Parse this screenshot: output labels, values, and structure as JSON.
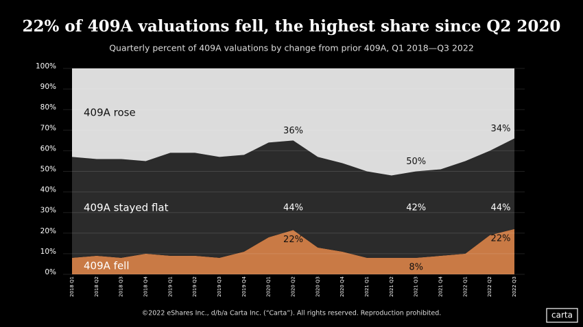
{
  "chart_data": {
    "type": "stacked_area",
    "title": "22% of 409A valuations fell, the highest share since Q2 2020",
    "subtitle": "Quarterly percent of 409A valuations by change from prior 409A, Q1 2018—Q3 2022",
    "footer": "©2022 eShares Inc., d/b/a Carta Inc. (“Carta”). All rights reserved. Reproduction prohibited.",
    "logo": "carta",
    "categories": [
      "2018 Q1",
      "2018 Q2",
      "2018 Q3",
      "2018 Q4",
      "2019 Q1",
      "2019 Q2",
      "2019 Q3",
      "2019 Q4",
      "2020 Q1",
      "2020 Q2",
      "2020 Q3",
      "2020 Q4",
      "2021 Q1",
      "2021 Q2",
      "2021 Q3",
      "2021 Q4",
      "2022 Q1",
      "2022 Q2",
      "2022 Q3"
    ],
    "series": [
      {
        "name": "409A fell",
        "color": "#c97a45",
        "values": [
          8,
          9,
          8,
          10,
          9,
          9,
          8,
          11,
          18,
          21.5,
          13,
          11,
          8,
          8,
          8,
          9,
          10,
          19,
          22
        ],
        "value_labels": [
          null,
          null,
          null,
          null,
          null,
          null,
          null,
          null,
          null,
          "22%",
          null,
          null,
          null,
          null,
          "8%",
          null,
          null,
          null,
          "22%"
        ]
      },
      {
        "name": "409A stayed flat",
        "color": "#2b2b2b",
        "values": [
          49,
          47,
          48,
          45,
          50,
          50,
          49,
          47,
          46,
          43.5,
          44,
          43,
          42,
          40,
          42,
          42,
          45,
          41,
          44
        ],
        "value_labels": [
          null,
          null,
          null,
          null,
          null,
          null,
          null,
          null,
          null,
          "44%",
          null,
          null,
          null,
          null,
          "42%",
          null,
          null,
          null,
          "44%"
        ]
      },
      {
        "name": "409A rose",
        "color": "#dcdcdc",
        "values": [
          43,
          44,
          44,
          45,
          41,
          41,
          43,
          42,
          36,
          35.5,
          43,
          46,
          50,
          52,
          50,
          49,
          45,
          40,
          34
        ],
        "value_labels": [
          null,
          null,
          null,
          null,
          null,
          null,
          null,
          null,
          null,
          "36%",
          null,
          null,
          null,
          null,
          "50%",
          null,
          null,
          null,
          "34%"
        ]
      }
    ],
    "ylim": [
      0,
      100
    ],
    "yticks": [
      {
        "value": 0,
        "label": "0%"
      },
      {
        "value": 10,
        "label": "10%"
      },
      {
        "value": 20,
        "label": "20%"
      },
      {
        "value": 30,
        "label": "30%"
      },
      {
        "value": 40,
        "label": "40%"
      },
      {
        "value": 50,
        "label": "50%"
      },
      {
        "value": 60,
        "label": "60%"
      },
      {
        "value": 70,
        "label": "70%"
      },
      {
        "value": 80,
        "label": "80%"
      },
      {
        "value": 90,
        "label": "90%"
      },
      {
        "value": 100,
        "label": "100%"
      }
    ],
    "grid": true
  }
}
